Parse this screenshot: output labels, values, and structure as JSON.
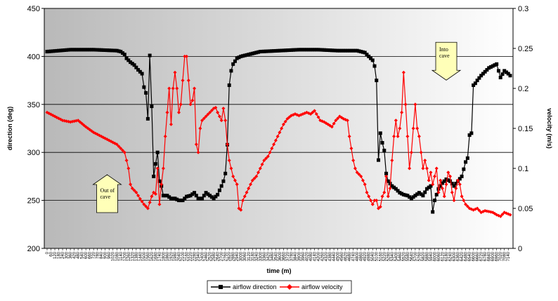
{
  "chart_data": {
    "type": "line",
    "title": "",
    "xlabel": "time (m)",
    "ylabel": "direction (deg)",
    "y2label": "velocity (m/s)",
    "ylim": [
      200,
      450
    ],
    "y2lim": [
      0,
      0.3
    ],
    "yticks": [
      "200",
      "250",
      "300",
      "350",
      "400",
      "450"
    ],
    "y2ticks": [
      "0",
      "0.05",
      "0.1",
      "0.15",
      "0.2",
      "0.25",
      "0.3"
    ],
    "grid": "horizontal",
    "legend_position": "bottom",
    "n_points": 240,
    "xticks": [
      "0",
      "60",
      "120",
      "180",
      "240",
      "300",
      "360",
      "420",
      "480",
      "540",
      "600",
      "660",
      "720",
      "780",
      "840",
      "900",
      "960",
      "1020",
      "1080",
      "1140",
      "1200",
      "1260",
      "1320",
      "1380",
      "1440",
      "1500",
      "1560",
      "1620",
      "1680",
      "1740",
      "1800",
      "1860",
      "1920",
      "1980",
      "2040",
      "2100",
      "2160",
      "2220",
      "2280",
      "2340",
      "2400",
      "2460",
      "2520",
      "2580",
      "2640",
      "2700",
      "2760",
      "2820",
      "2880",
      "2940",
      "3000",
      "3060",
      "3120",
      "3180",
      "3240",
      "3300",
      "3360",
      "3420",
      "3480",
      "3540",
      "3600",
      "3660",
      "3720",
      "3780",
      "3840",
      "3900",
      "3960",
      "4020",
      "4080",
      "4140",
      "4200",
      "4260",
      "4320",
      "4380",
      "4440",
      "4500",
      "4560",
      "4620",
      "4680",
      "4740",
      "4800",
      "4860",
      "4920",
      "4980",
      "5040",
      "5100",
      "5160",
      "5220",
      "5280",
      "5340",
      "5400",
      "5460",
      "5520",
      "5580",
      "5640",
      "5700",
      "5760",
      "5820",
      "5880",
      "5940",
      "6000",
      "6060",
      "6120",
      "6180",
      "6240",
      "6300",
      "6360",
      "6420",
      "6480",
      "6540",
      "6600",
      "6660",
      "6720",
      "6780",
      "6840",
      "6900",
      "6960",
      "7020",
      "7080",
      "7140"
    ],
    "series": [
      {
        "name": "airflow direction",
        "axis": "left",
        "color": "#000000",
        "marker": "square",
        "anchors": [
          [
            0,
            405
          ],
          [
            6,
            406
          ],
          [
            12,
            407
          ],
          [
            24,
            407
          ],
          [
            36,
            406
          ],
          [
            38,
            405
          ],
          [
            40,
            402
          ],
          [
            41,
            398
          ],
          [
            43,
            394
          ],
          [
            45,
            391
          ],
          [
            47,
            386
          ],
          [
            49,
            382
          ],
          [
            50,
            368
          ],
          [
            51,
            362
          ],
          [
            52,
            335
          ],
          [
            53,
            401
          ],
          [
            54,
            348
          ],
          [
            55,
            275
          ],
          [
            56,
            288
          ],
          [
            57,
            300
          ],
          [
            58,
            270
          ],
          [
            59,
            265
          ],
          [
            60,
            255
          ],
          [
            62,
            255
          ],
          [
            64,
            252
          ],
          [
            66,
            252
          ],
          [
            68,
            250
          ],
          [
            70,
            250
          ],
          [
            72,
            254
          ],
          [
            74,
            255
          ],
          [
            76,
            258
          ],
          [
            78,
            252
          ],
          [
            80,
            252
          ],
          [
            82,
            258
          ],
          [
            84,
            255
          ],
          [
            86,
            252
          ],
          [
            88,
            256
          ],
          [
            90,
            265
          ],
          [
            91,
            270
          ],
          [
            92,
            278
          ],
          [
            93,
            308
          ],
          [
            94,
            370
          ],
          [
            95,
            385
          ],
          [
            96,
            392
          ],
          [
            98,
            398
          ],
          [
            100,
            400
          ],
          [
            104,
            402
          ],
          [
            110,
            405
          ],
          [
            120,
            406
          ],
          [
            130,
            407
          ],
          [
            140,
            407
          ],
          [
            150,
            406
          ],
          [
            160,
            406
          ],
          [
            164,
            404
          ],
          [
            166,
            400
          ],
          [
            168,
            396
          ],
          [
            169,
            390
          ],
          [
            170,
            375
          ],
          [
            171,
            292
          ],
          [
            172,
            320
          ],
          [
            173,
            310
          ],
          [
            174,
            302
          ],
          [
            175,
            278
          ],
          [
            176,
            270
          ],
          [
            178,
            265
          ],
          [
            180,
            262
          ],
          [
            182,
            258
          ],
          [
            184,
            256
          ],
          [
            186,
            255
          ],
          [
            188,
            252
          ],
          [
            190,
            255
          ],
          [
            192,
            258
          ],
          [
            194,
            255
          ],
          [
            196,
            262
          ],
          [
            198,
            265
          ],
          [
            199,
            238
          ],
          [
            200,
            250
          ],
          [
            202,
            262
          ],
          [
            204,
            268
          ],
          [
            206,
            272
          ],
          [
            208,
            270
          ],
          [
            210,
            265
          ],
          [
            212,
            270
          ],
          [
            214,
            275
          ],
          [
            216,
            290
          ],
          [
            217,
            294
          ],
          [
            218,
            318
          ],
          [
            219,
            320
          ],
          [
            220,
            370
          ],
          [
            221,
            372
          ],
          [
            222,
            375
          ],
          [
            224,
            380
          ],
          [
            226,
            384
          ],
          [
            228,
            388
          ],
          [
            230,
            390
          ],
          [
            232,
            392
          ],
          [
            233,
            385
          ],
          [
            234,
            378
          ],
          [
            236,
            385
          ],
          [
            238,
            382
          ],
          [
            239,
            380
          ]
        ]
      },
      {
        "name": "airflow velocity",
        "axis": "right",
        "color": "#ff0000",
        "marker": "diamond",
        "anchors": [
          [
            0,
            0.17
          ],
          [
            4,
            0.165
          ],
          [
            8,
            0.16
          ],
          [
            12,
            0.158
          ],
          [
            16,
            0.16
          ],
          [
            20,
            0.152
          ],
          [
            24,
            0.145
          ],
          [
            28,
            0.14
          ],
          [
            32,
            0.135
          ],
          [
            36,
            0.13
          ],
          [
            38,
            0.125
          ],
          [
            40,
            0.12
          ],
          [
            41,
            0.11
          ],
          [
            42,
            0.1
          ],
          [
            43,
            0.08
          ],
          [
            44,
            0.075
          ],
          [
            46,
            0.07
          ],
          [
            48,
            0.062
          ],
          [
            50,
            0.055
          ],
          [
            52,
            0.05
          ],
          [
            54,
            0.065
          ],
          [
            55,
            0.07
          ],
          [
            56,
            0.068
          ],
          [
            57,
            0.1
          ],
          [
            58,
            0.055
          ],
          [
            59,
            0.08
          ],
          [
            60,
            0.1
          ],
          [
            61,
            0.14
          ],
          [
            62,
            0.17
          ],
          [
            63,
            0.2
          ],
          [
            64,
            0.155
          ],
          [
            65,
            0.2
          ],
          [
            66,
            0.22
          ],
          [
            67,
            0.2
          ],
          [
            68,
            0.17
          ],
          [
            69,
            0.18
          ],
          [
            70,
            0.21
          ],
          [
            71,
            0.24
          ],
          [
            72,
            0.24
          ],
          [
            73,
            0.21
          ],
          [
            74,
            0.18
          ],
          [
            75,
            0.185
          ],
          [
            76,
            0.2
          ],
          [
            77,
            0.13
          ],
          [
            78,
            0.12
          ],
          [
            79,
            0.15
          ],
          [
            80,
            0.16
          ],
          [
            82,
            0.165
          ],
          [
            84,
            0.17
          ],
          [
            86,
            0.175
          ],
          [
            87,
            0.176
          ],
          [
            88,
            0.17
          ],
          [
            90,
            0.16
          ],
          [
            91,
            0.175
          ],
          [
            92,
            0.16
          ],
          [
            93,
            0.13
          ],
          [
            94,
            0.11
          ],
          [
            95,
            0.1
          ],
          [
            96,
            0.09
          ],
          [
            97,
            0.085
          ],
          [
            98,
            0.08
          ],
          [
            99,
            0.05
          ],
          [
            100,
            0.048
          ],
          [
            101,
            0.06
          ],
          [
            102,
            0.065
          ],
          [
            104,
            0.075
          ],
          [
            106,
            0.085
          ],
          [
            108,
            0.09
          ],
          [
            110,
            0.1
          ],
          [
            112,
            0.11
          ],
          [
            114,
            0.115
          ],
          [
            116,
            0.125
          ],
          [
            118,
            0.135
          ],
          [
            120,
            0.145
          ],
          [
            122,
            0.155
          ],
          [
            124,
            0.162
          ],
          [
            126,
            0.166
          ],
          [
            128,
            0.168
          ],
          [
            130,
            0.166
          ],
          [
            132,
            0.168
          ],
          [
            134,
            0.17
          ],
          [
            136,
            0.168
          ],
          [
            138,
            0.172
          ],
          [
            139,
            0.168
          ],
          [
            141,
            0.16
          ],
          [
            143,
            0.158
          ],
          [
            145,
            0.155
          ],
          [
            147,
            0.152
          ],
          [
            149,
            0.16
          ],
          [
            151,
            0.165
          ],
          [
            153,
            0.162
          ],
          [
            155,
            0.16
          ],
          [
            156,
            0.14
          ],
          [
            157,
            0.125
          ],
          [
            158,
            0.11
          ],
          [
            159,
            0.1
          ],
          [
            160,
            0.095
          ],
          [
            162,
            0.09
          ],
          [
            164,
            0.08
          ],
          [
            165,
            0.07
          ],
          [
            166,
            0.065
          ],
          [
            167,
            0.06
          ],
          [
            168,
            0.055
          ],
          [
            169,
            0.06
          ],
          [
            170,
            0.06
          ],
          [
            171,
            0.05
          ],
          [
            172,
            0.052
          ],
          [
            173,
            0.065
          ],
          [
            174,
            0.07
          ],
          [
            175,
            0.09
          ],
          [
            176,
            0.065
          ],
          [
            177,
            0.075
          ],
          [
            178,
            0.11
          ],
          [
            179,
            0.14
          ],
          [
            180,
            0.16
          ],
          [
            181,
            0.14
          ],
          [
            182,
            0.15
          ],
          [
            183,
            0.17
          ],
          [
            184,
            0.22
          ],
          [
            185,
            0.18
          ],
          [
            186,
            0.14
          ],
          [
            187,
            0.1
          ],
          [
            188,
            0.12
          ],
          [
            189,
            0.15
          ],
          [
            190,
            0.18
          ],
          [
            191,
            0.15
          ],
          [
            192,
            0.14
          ],
          [
            193,
            0.12
          ],
          [
            194,
            0.1
          ],
          [
            195,
            0.11
          ],
          [
            196,
            0.1
          ],
          [
            197,
            0.085
          ],
          [
            198,
            0.095
          ],
          [
            199,
            0.08
          ],
          [
            200,
            0.09
          ],
          [
            201,
            0.1
          ],
          [
            202,
            0.07
          ],
          [
            203,
            0.085
          ],
          [
            204,
            0.075
          ],
          [
            205,
            0.065
          ],
          [
            206,
            0.08
          ],
          [
            207,
            0.095
          ],
          [
            208,
            0.09
          ],
          [
            209,
            0.07
          ],
          [
            210,
            0.06
          ],
          [
            211,
            0.075
          ],
          [
            212,
            0.085
          ],
          [
            213,
            0.08
          ],
          [
            214,
            0.065
          ],
          [
            215,
            0.06
          ],
          [
            216,
            0.055
          ],
          [
            218,
            0.05
          ],
          [
            220,
            0.048
          ],
          [
            222,
            0.05
          ],
          [
            224,
            0.045
          ],
          [
            226,
            0.047
          ],
          [
            228,
            0.046
          ],
          [
            230,
            0.045
          ],
          [
            232,
            0.042
          ],
          [
            234,
            0.04
          ],
          [
            236,
            0.045
          ],
          [
            239,
            0.042
          ]
        ]
      }
    ],
    "annotations": [
      {
        "text_lines": [
          "Out of",
          "cave"
        ],
        "arrow": "up",
        "at_index": 31,
        "at_y": 257
      },
      {
        "text_lines": [
          "Into",
          "cave"
        ],
        "arrow": "down",
        "at_index": 206,
        "at_y": 395
      }
    ]
  }
}
